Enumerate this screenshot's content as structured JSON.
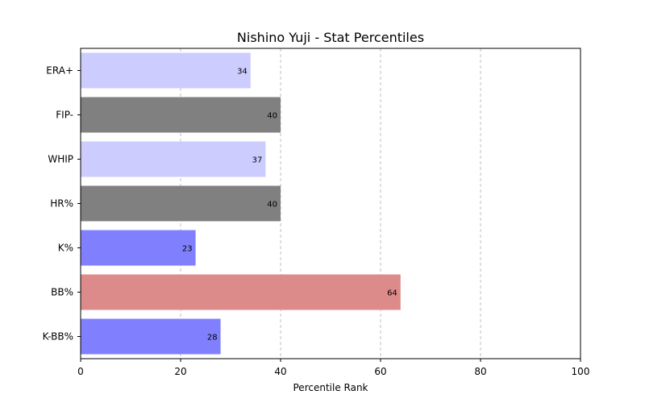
{
  "chart_data": {
    "type": "bar",
    "orientation": "horizontal",
    "title": "Nishino Yuji - Stat Percentiles",
    "xlabel": "Percentile Rank",
    "ylabel": "",
    "xlim": [
      0,
      100
    ],
    "xticks": [
      0,
      20,
      40,
      60,
      80,
      100
    ],
    "grid": "x-dashed",
    "categories": [
      "ERA+",
      "FIP-",
      "WHIP",
      "HR%",
      "K%",
      "BB%",
      "K-BB%"
    ],
    "values": [
      34,
      40,
      37,
      40,
      23,
      64,
      28
    ],
    "colors": [
      "#ccccff",
      "#808080",
      "#ccccff",
      "#808080",
      "#8080ff",
      "#dd8a8a",
      "#8080ff"
    ]
  }
}
